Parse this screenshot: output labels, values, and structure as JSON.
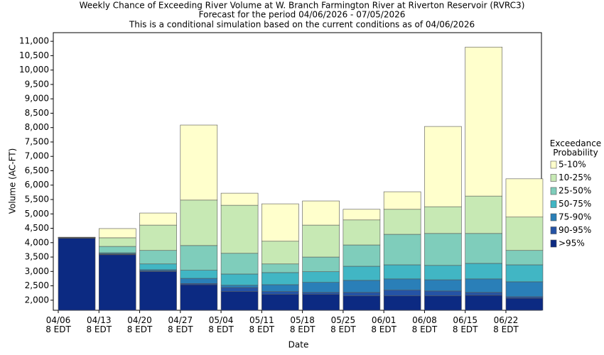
{
  "chart_data": {
    "type": "range_bar",
    "title": "Weekly Chance of Exceeding River Volume at W. Branch Farmington River at Riverton Reservoir (RVRC3)",
    "subtitle": "Forecast for the period 04/06/2026 - 07/05/2026",
    "subtitle2": "This is a conditional simulation based on the current conditions as of 04/06/2026",
    "x_label": "Date",
    "y_label": "Volume (AC-FT)",
    "legend_title": "Exceedance\nProbability",
    "legend": "right",
    "categories": [
      "04/06\n8 EDT",
      "04/13\n8 EDT",
      "04/20\n8 EDT",
      "04/27\n8 EDT",
      "05/04\n8 EDT",
      "05/11\n8 EDT",
      "05/18\n8 EDT",
      "05/25\n8 EDT",
      "06/01\n8 EDT",
      "06/08\n8 EDT",
      "06/15\n8 EDT",
      "06/22\n8 EDT"
    ],
    "series": [
      {
        "name": ">95%",
        "color": "#0c2a82",
        "values": [
          4150,
          3580,
          2990,
          2540,
          2300,
          2200,
          2200,
          2150,
          2150,
          2150,
          2170,
          2070
        ]
      },
      {
        "name": "90-95%",
        "color": "#2553a5",
        "values": [
          4160,
          3600,
          3020,
          2580,
          2440,
          2300,
          2270,
          2270,
          2350,
          2320,
          2270,
          2120
        ]
      },
      {
        "name": "75-90%",
        "color": "#2a7fb8",
        "values": [
          4170,
          3620,
          3060,
          2760,
          2520,
          2540,
          2620,
          2690,
          2740,
          2710,
          2740,
          2640
        ]
      },
      {
        "name": "50-75%",
        "color": "#41b6c4",
        "values": [
          4175,
          3650,
          3260,
          3040,
          2910,
          2960,
          2990,
          3180,
          3230,
          3210,
          3280,
          3230
        ]
      },
      {
        "name": "25-50%",
        "color": "#7fcdbb",
        "values": [
          4180,
          3870,
          3730,
          3900,
          3630,
          3260,
          3500,
          3920,
          4290,
          4320,
          4320,
          3730
        ]
      },
      {
        "name": "10-25%",
        "color": "#c7e9b4",
        "values": [
          4185,
          4170,
          4610,
          5480,
          5300,
          4050,
          4610,
          4790,
          5160,
          5250,
          5620,
          4890
        ]
      },
      {
        "name": "5-10%",
        "color": "#ffffcc",
        "values": [
          4190,
          4490,
          5030,
          8090,
          5720,
          5350,
          5450,
          5160,
          5770,
          8040,
          10800,
          6220
        ]
      }
    ],
    "ylim": [
      1650,
      11300
    ],
    "yticks": [
      {
        "value": 2000,
        "label": "2,000"
      },
      {
        "value": 2500,
        "label": "2,500"
      },
      {
        "value": 3000,
        "label": "3,000"
      },
      {
        "value": 3500,
        "label": "3,500"
      },
      {
        "value": 4000,
        "label": "4,000"
      },
      {
        "value": 4500,
        "label": "4,500"
      },
      {
        "value": 5000,
        "label": "5,000"
      },
      {
        "value": 5500,
        "label": "5,500"
      },
      {
        "value": 6000,
        "label": "6,000"
      },
      {
        "value": 6500,
        "label": "6,500"
      },
      {
        "value": 7000,
        "label": "7,000"
      },
      {
        "value": 7500,
        "label": "7,500"
      },
      {
        "value": 8000,
        "label": "8,000"
      },
      {
        "value": 8500,
        "label": "8,500"
      },
      {
        "value": 9000,
        "label": "9,000"
      },
      {
        "value": 9500,
        "label": "9,500"
      },
      {
        "value": 10000,
        "label": "10,000"
      },
      {
        "value": 10500,
        "label": "10,500"
      },
      {
        "value": 11000,
        "label": "11,000"
      }
    ]
  }
}
